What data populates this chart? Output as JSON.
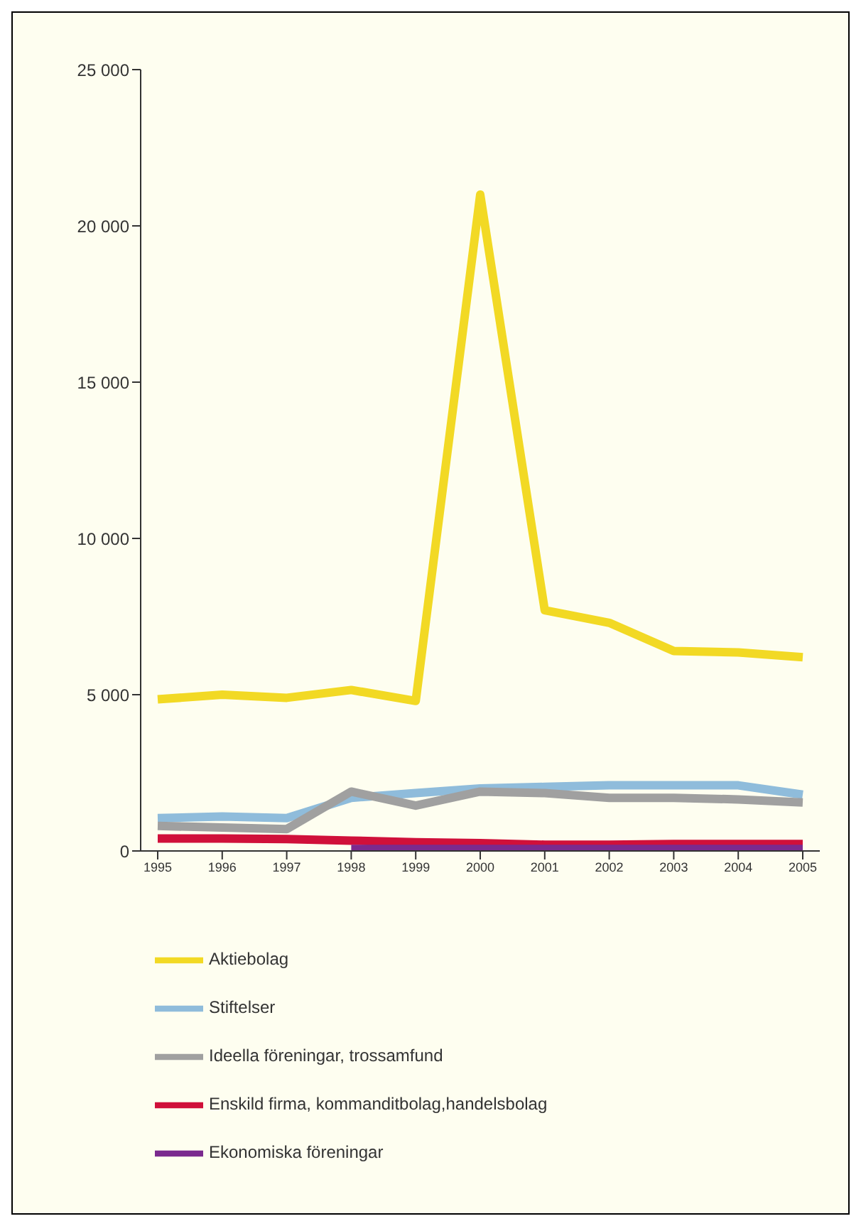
{
  "chart_data": {
    "type": "line",
    "categories": [
      "1995",
      "1996",
      "1997",
      "1998",
      "1999",
      "2000",
      "2001",
      "2002",
      "2003",
      "2004",
      "2005"
    ],
    "ylim": [
      0,
      25000
    ],
    "yticks": [
      {
        "value": 0,
        "label": "0"
      },
      {
        "value": 5000,
        "label": "5 000"
      },
      {
        "value": 10000,
        "label": "10 000"
      },
      {
        "value": 15000,
        "label": "15 000"
      },
      {
        "value": 20000,
        "label": "20 000"
      },
      {
        "value": 25000,
        "label": "25 000"
      }
    ],
    "grid": false,
    "legend": "bottom",
    "marker": "none",
    "line_style": "solid",
    "series": [
      {
        "name": "Aktiebolag",
        "color": "#f2d924",
        "values": [
          4850,
          5000,
          4900,
          5150,
          4800,
          21000,
          7700,
          7300,
          6400,
          6350,
          6200
        ]
      },
      {
        "name": "Stiftelser",
        "color": "#8fbcdb",
        "values": [
          1050,
          1100,
          1050,
          1700,
          1850,
          2000,
          2050,
          2100,
          2100,
          2100,
          1800
        ]
      },
      {
        "name": "Ideella föreningar, trossamfund",
        "color": "#a0a0a0",
        "values": [
          800,
          750,
          700,
          1900,
          1450,
          1900,
          1850,
          1700,
          1700,
          1650,
          1550
        ]
      },
      {
        "name": "Enskild firma, kommanditbolag,handelsbolag",
        "color": "#d0103a",
        "values": [
          400,
          400,
          380,
          330,
          280,
          250,
          200,
          200,
          220,
          220,
          220
        ]
      },
      {
        "name": "Ekonomiska föreningar",
        "color": "#7b2a8e",
        "values": [
          null,
          null,
          null,
          60,
          60,
          60,
          60,
          60,
          60,
          60,
          60
        ]
      }
    ]
  }
}
